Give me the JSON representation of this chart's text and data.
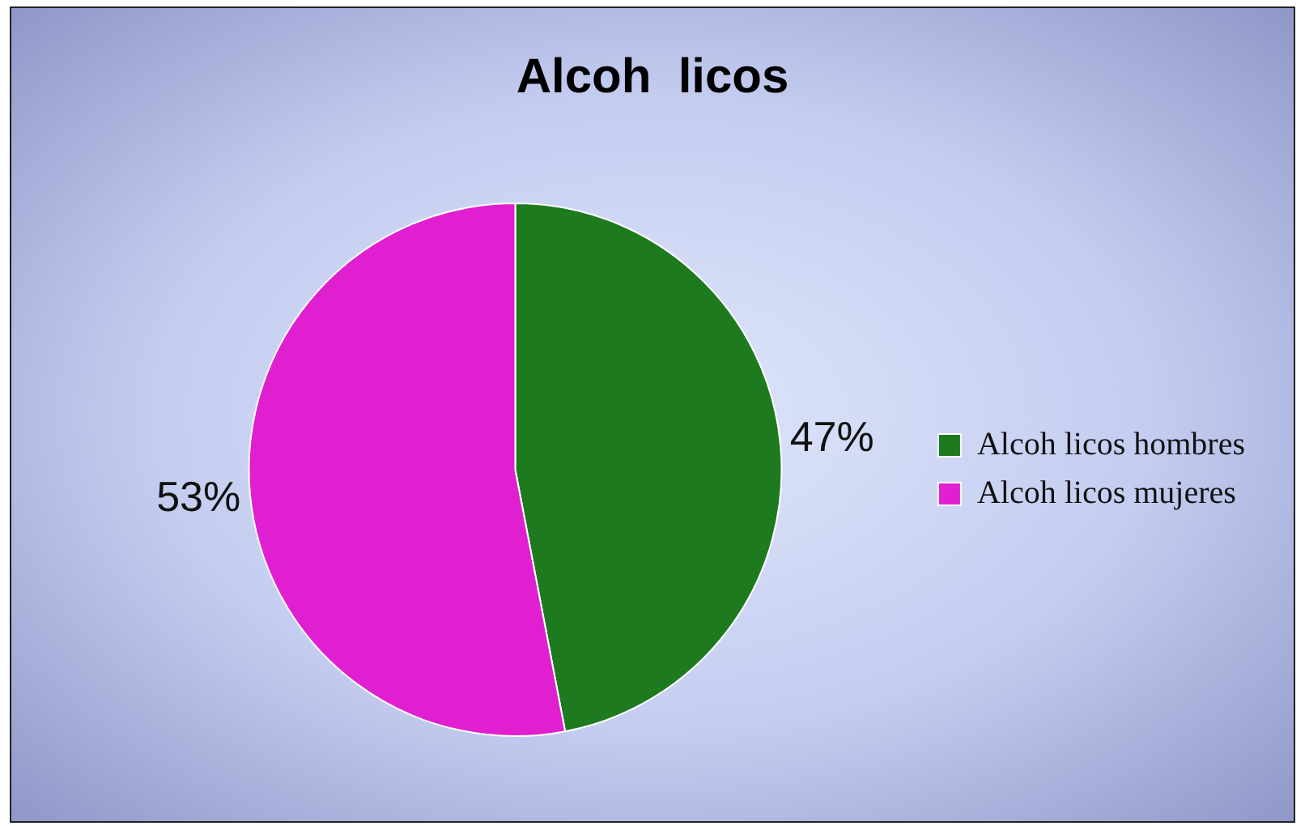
{
  "chart_data": {
    "type": "pie",
    "title": "Alcoh  licos",
    "categories": [
      "Alcoh licos hombres",
      "Alcoh licos mujeres"
    ],
    "values": [
      47,
      53
    ],
    "colors": [
      "#1e7a1e",
      "#e020d0"
    ],
    "value_labels": [
      "47%",
      "53%"
    ],
    "legend": "right"
  }
}
